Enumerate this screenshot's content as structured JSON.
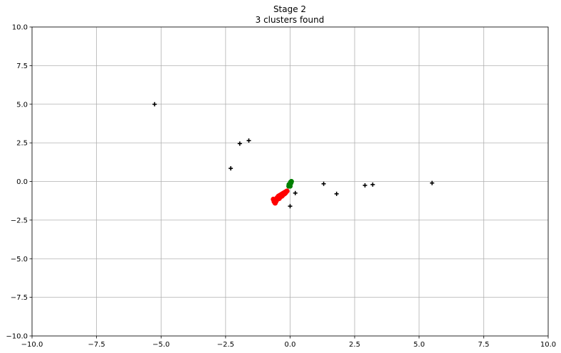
{
  "chart_data": {
    "type": "scatter",
    "title": "Stage 2",
    "subtitle": "3 clusters found",
    "xlabel": "",
    "ylabel": "",
    "xlim": [
      -10,
      10
    ],
    "ylim": [
      -10,
      10
    ],
    "grid": true,
    "x_ticks": [
      -10.0,
      -7.5,
      -5.0,
      -2.5,
      0.0,
      2.5,
      5.0,
      7.5,
      10.0
    ],
    "x_tick_labels": [
      "−10.0",
      "−7.5",
      "−5.0",
      "−2.5",
      "0.0",
      "2.5",
      "5.0",
      "7.5",
      "10.0"
    ],
    "y_ticks": [
      10.0,
      7.5,
      5.0,
      2.5,
      0.0,
      -2.5,
      -5.0,
      -7.5,
      -10.0
    ],
    "y_tick_labels": [
      "10.0",
      "7.5",
      "5.0",
      "2.5",
      "0.0",
      "−2.5",
      "−5.0",
      "−7.5",
      "−10.0"
    ],
    "series": [
      {
        "marker": "plus",
        "color": "#000000",
        "points": [
          [
            -5.25,
            5.0
          ],
          [
            -1.95,
            2.45
          ],
          [
            -1.6,
            2.65
          ],
          [
            -2.3,
            0.85
          ],
          [
            0.0,
            -1.6
          ],
          [
            0.2,
            -0.75
          ],
          [
            1.3,
            -0.15
          ],
          [
            1.8,
            -0.8
          ],
          [
            2.9,
            -0.25
          ],
          [
            3.2,
            -0.2
          ],
          [
            5.5,
            -0.1
          ]
        ]
      },
      {
        "marker": "circle",
        "color": "#ff0000",
        "points": [
          [
            -0.65,
            -1.15
          ],
          [
            -0.62,
            -1.3
          ],
          [
            -0.58,
            -1.4
          ],
          [
            -0.55,
            -1.2
          ],
          [
            -0.5,
            -1.05
          ],
          [
            -0.48,
            -1.15
          ],
          [
            -0.45,
            -0.95
          ],
          [
            -0.42,
            -1.1
          ],
          [
            -0.4,
            -0.9
          ],
          [
            -0.38,
            -1.0
          ],
          [
            -0.35,
            -0.85
          ],
          [
            -0.32,
            -0.95
          ],
          [
            -0.3,
            -0.8
          ],
          [
            -0.28,
            -0.88
          ],
          [
            -0.25,
            -0.75
          ],
          [
            -0.22,
            -0.8
          ],
          [
            -0.2,
            -0.7
          ],
          [
            -0.17,
            -0.72
          ],
          [
            -0.15,
            -0.65
          ],
          [
            -0.12,
            -0.62
          ],
          [
            -0.55,
            -1.3
          ],
          [
            -0.45,
            -1.05
          ],
          [
            -0.35,
            -0.92
          ],
          [
            -0.25,
            -0.82
          ],
          [
            -0.6,
            -1.25
          ],
          [
            -0.5,
            -1.15
          ],
          [
            -0.3,
            -0.88
          ],
          [
            -0.2,
            -0.76
          ]
        ]
      },
      {
        "marker": "circle",
        "color": "#008000",
        "points": [
          [
            -0.05,
            -0.3
          ],
          [
            -0.02,
            -0.25
          ],
          [
            0.0,
            -0.15
          ],
          [
            0.02,
            -0.05
          ],
          [
            0.05,
            0.0
          ],
          [
            0.0,
            -0.3
          ],
          [
            -0.04,
            -0.2
          ],
          [
            0.03,
            -0.1
          ]
        ]
      }
    ]
  }
}
